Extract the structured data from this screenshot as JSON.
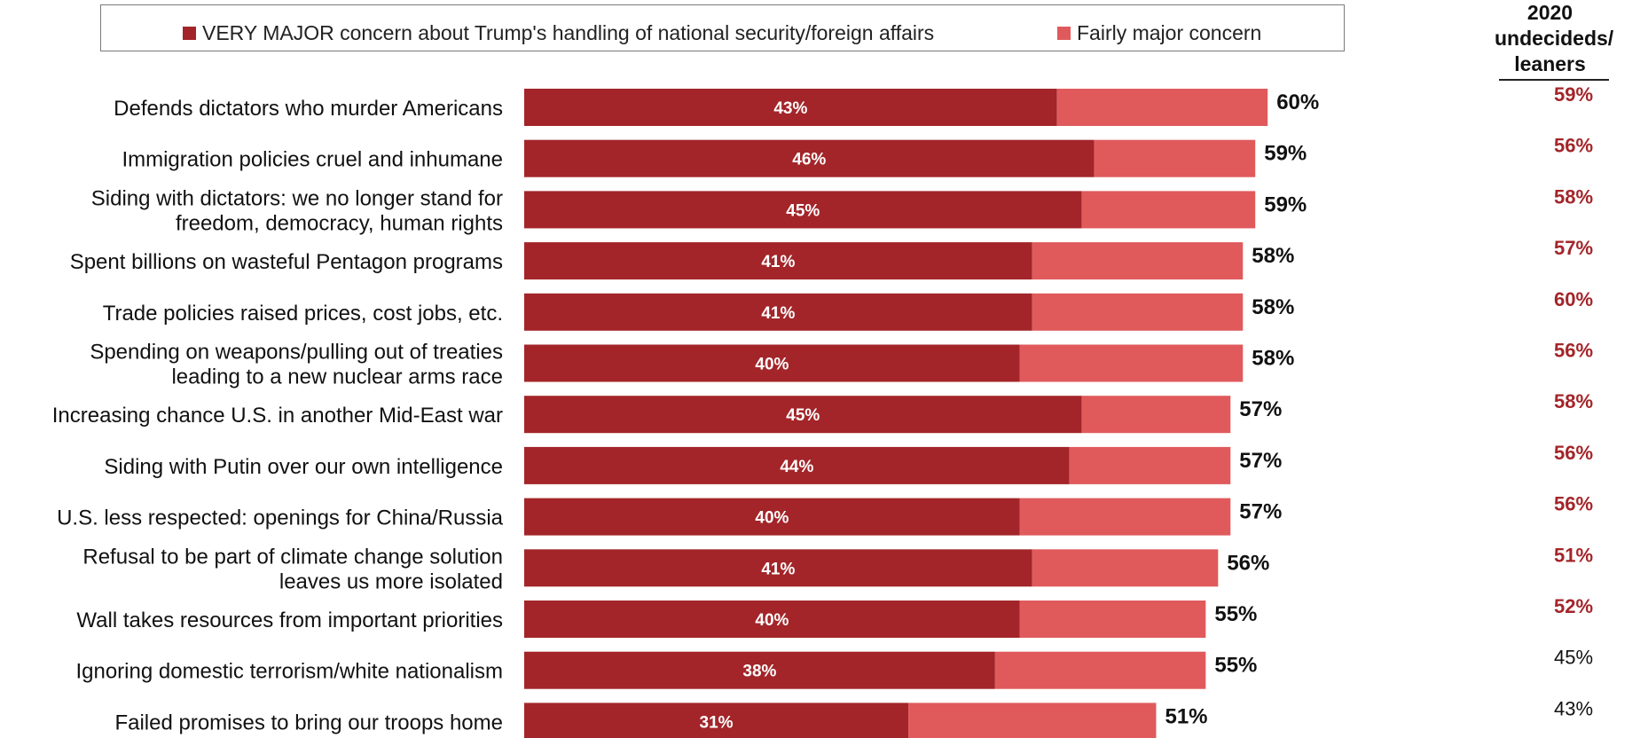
{
  "legend": {
    "very_major_label": "VERY MAJOR concern about Trump's handling of national security/foreign affairs",
    "fairly_major_label": "Fairly major concern"
  },
  "side_column": {
    "header_line1": "2020",
    "header_line2": "undecideds/",
    "header_line3": "leaners"
  },
  "colors": {
    "very_major": "#a32529",
    "fairly_major": "#e05a5c",
    "side_highlight": "#a32529",
    "side_normal": "#111111"
  },
  "chart_data": {
    "type": "bar",
    "orientation": "horizontal",
    "stacked": true,
    "grid": false,
    "legend_position": "top",
    "categories": [
      [
        "Defends dictators who murder Americans"
      ],
      [
        "Immigration policies cruel and inhumane"
      ],
      [
        "Siding with dictators: we no longer stand for",
        "freedom, democracy, human rights"
      ],
      [
        "Spent billions on wasteful Pentagon programs"
      ],
      [
        "Trade policies raised prices, cost jobs, etc."
      ],
      [
        "Spending on weapons/pulling out of treaties",
        "leading to a new nuclear arms race"
      ],
      [
        "Increasing chance U.S. in another Mid-East war"
      ],
      [
        "Siding with Putin over our own intelligence"
      ],
      [
        "U.S. less respected: openings for China/Russia"
      ],
      [
        "Refusal to be part of climate change solution",
        "leaves us more isolated"
      ],
      [
        "Wall takes resources from important priorities"
      ],
      [
        "Ignoring domestic terrorism/white nationalism"
      ],
      [
        "Failed promises to bring our troops home"
      ]
    ],
    "series": [
      {
        "name": "VERY MAJOR concern about Trump's handling of national security/foreign affairs",
        "values": [
          43,
          46,
          45,
          41,
          41,
          40,
          45,
          44,
          40,
          41,
          40,
          38,
          31
        ],
        "labels": [
          "43%",
          "46%",
          "45%",
          "41%",
          "41%",
          "40%",
          "45%",
          "44%",
          "40%",
          "41%",
          "40%",
          "38%",
          "31%"
        ]
      },
      {
        "name": "Fairly major concern",
        "values": [
          17,
          13,
          14,
          17,
          17,
          18,
          12,
          13,
          17,
          15,
          15,
          17,
          20
        ]
      }
    ],
    "totals": [
      60,
      59,
      59,
      58,
      58,
      58,
      57,
      57,
      57,
      56,
      55,
      55,
      51
    ],
    "total_labels": [
      "60%",
      "59%",
      "59%",
      "58%",
      "58%",
      "58%",
      "57%",
      "57%",
      "57%",
      "56%",
      "55%",
      "55%",
      "51%"
    ],
    "undecided_leaners": [
      "59%",
      "56%",
      "58%",
      "57%",
      "60%",
      "56%",
      "58%",
      "56%",
      "56%",
      "51%",
      "52%",
      "45%",
      "43%"
    ],
    "undecided_highlighted": [
      true,
      true,
      true,
      true,
      true,
      true,
      true,
      true,
      true,
      true,
      true,
      false,
      false
    ],
    "xlim": [
      0,
      100
    ]
  }
}
